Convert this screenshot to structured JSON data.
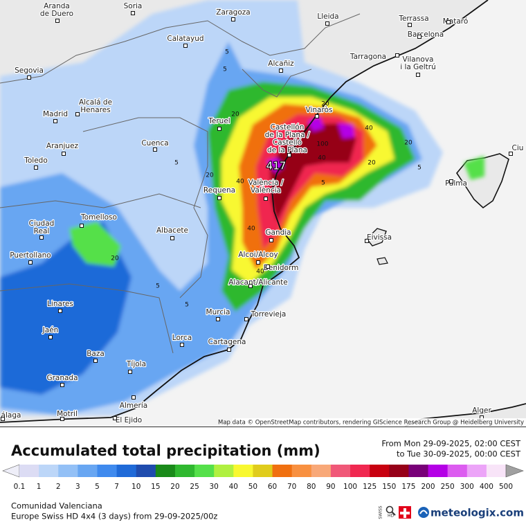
{
  "map": {
    "cities": [
      [
        "Aranda",
        "de Duero"
      ],
      [
        "Soria"
      ],
      [
        "Zaragoza"
      ],
      [
        "Lleida"
      ],
      [
        "Terrassa"
      ],
      [
        "Mataró"
      ],
      [
        "Barcelona"
      ],
      [
        "Calatayud"
      ],
      [
        "Tarragona"
      ],
      [
        "Vilanova",
        "i la Geltrú"
      ],
      [
        "Alcañiz"
      ],
      [
        "Segovia"
      ],
      [
        "Alcalá de",
        "Henares"
      ],
      [
        "Madrid"
      ],
      [
        "Vinaròs"
      ],
      [
        "Teruel"
      ],
      [
        "Castellón",
        "de la Plana /",
        "Castelló",
        "de la Plana"
      ],
      [
        "Aranjuez"
      ],
      [
        "Cuenca"
      ],
      [
        "Toledo"
      ],
      [
        "Ciu"
      ],
      [
        "València /",
        "València"
      ],
      [
        "Requena"
      ],
      [
        "Palma"
      ],
      [
        "Tomelloso"
      ],
      [
        "Ciudad",
        "Real"
      ],
      [
        "Albacete"
      ],
      [
        "Gandia"
      ],
      [
        "Eivissa"
      ],
      [
        "Puertollano"
      ],
      [
        "Alcoi/Alcoy"
      ],
      [
        "Benidorm"
      ],
      [
        "Alacant/Alicante"
      ],
      [
        "Linares"
      ],
      [
        "Murcia"
      ],
      [
        "Torrevieja"
      ],
      [
        "Jaén"
      ],
      [
        "Lorca"
      ],
      [
        "Cartagena"
      ],
      [
        "Baza"
      ],
      [
        "Tíjola"
      ],
      [
        "Granada"
      ],
      [
        "Almería"
      ],
      [
        "Alger"
      ],
      [
        "álaga"
      ],
      [
        "Motril"
      ],
      [
        "El Ejido"
      ]
    ],
    "contour_labels": [
      "5",
      "5",
      "5",
      "20",
      "20",
      "40",
      "40",
      "100",
      "20",
      "40",
      "20",
      "5",
      "20",
      "40",
      "5",
      "5",
      "5",
      "20",
      "40",
      "417"
    ],
    "attribution": "Map data © OpenStreetMap contributors, rendering GIScience Research Group @ Heidelberg University"
  },
  "title": "Accumulated total precipitation (mm)",
  "period": [
    "From Mon 29-09-2025, 02:00 CEST",
    "to Tue 30-09-2025, 00:00 CEST"
  ],
  "legend": {
    "values": [
      0.1,
      1,
      2,
      3,
      5,
      7,
      10,
      15,
      20,
      25,
      30,
      40,
      50,
      60,
      70,
      80,
      90,
      100,
      125,
      150,
      175,
      200,
      250,
      300,
      400,
      500
    ],
    "colors": [
      "#dcdcf4",
      "#bcd6f8",
      "#93c0f6",
      "#68a6f2",
      "#3f8aee",
      "#1f6ad8",
      "#1f4cae",
      "#1a8a1a",
      "#2fb82f",
      "#55e04a",
      "#b0f040",
      "#f8f830",
      "#e0cc1c",
      "#f07010",
      "#f89040",
      "#f8a878",
      "#f05878",
      "#f02850",
      "#c80010",
      "#960018",
      "#780078",
      "#b400e6",
      "#dc5cf0",
      "#eca4f8",
      "#f8e4f8"
    ],
    "under_color": "#eeeef8",
    "over_color": "#a0a0a0"
  },
  "region": "Comunidad Valenciana",
  "model": "Europe Swiss HD 4x4 (3 days) from 29-09-2025/00z",
  "badge": [
    "SWISS",
    "HD"
  ],
  "brand": "meteologix.com"
}
